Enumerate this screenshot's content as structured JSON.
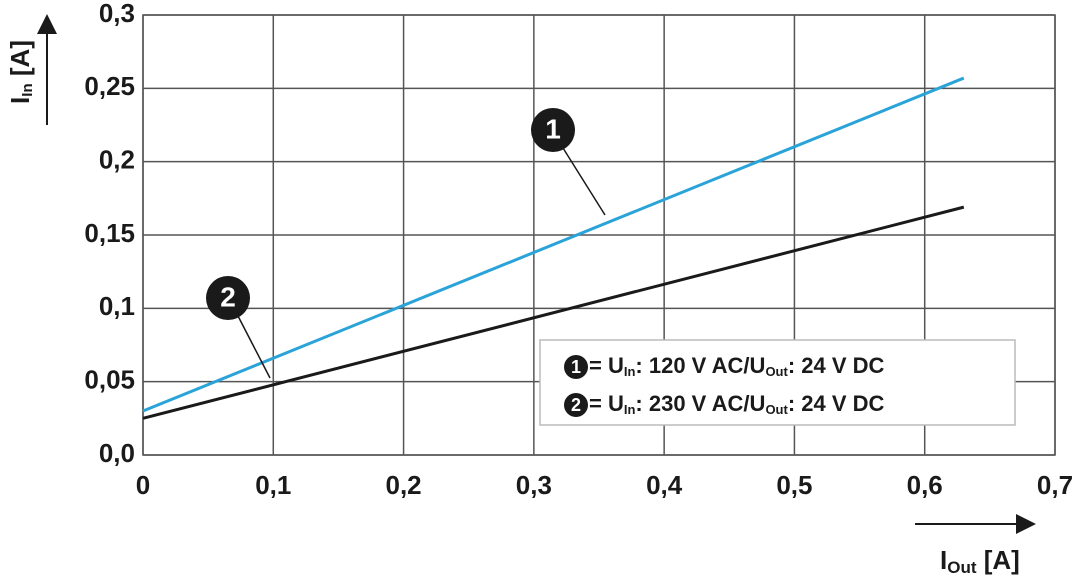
{
  "chart_data": {
    "type": "line",
    "y_label_parts": [
      "I",
      "In",
      " [A]"
    ],
    "x_label_parts": [
      "I",
      "Out",
      " [A]"
    ],
    "xlim": [
      0,
      0.7
    ],
    "ylim": [
      0,
      0.3
    ],
    "xticks": [
      {
        "value": 0,
        "label": "0"
      },
      {
        "value": 0.1,
        "label": "0,1"
      },
      {
        "value": 0.2,
        "label": "0,2"
      },
      {
        "value": 0.3,
        "label": "0,3"
      },
      {
        "value": 0.4,
        "label": "0,4"
      },
      {
        "value": 0.5,
        "label": "0,5"
      },
      {
        "value": 0.6,
        "label": "0,6"
      },
      {
        "value": 0.7,
        "label": "0,7"
      }
    ],
    "yticks": [
      {
        "value": 0,
        "label": "0,0"
      },
      {
        "value": 0.05,
        "label": "0,05"
      },
      {
        "value": 0.1,
        "label": "0,1"
      },
      {
        "value": 0.15,
        "label": "0,15"
      },
      {
        "value": 0.2,
        "label": "0,2"
      },
      {
        "value": 0.25,
        "label": "0,25"
      },
      {
        "value": 0.3,
        "label": "0,3"
      }
    ],
    "grid": true,
    "x": [
      0,
      0.63
    ],
    "series": [
      {
        "marker": "1",
        "name_parts": [
          "= U",
          "In",
          ": 120 V AC/U",
          "Out",
          ": 24 V DC"
        ],
        "color": "#2aa3d8",
        "values": [
          0.03,
          0.257
        ]
      },
      {
        "marker": "2",
        "name_parts": [
          "= U",
          "In",
          ": 230 V AC/U",
          "Out",
          ": 24 V DC"
        ],
        "color": "#1a1a1a",
        "values": [
          0.025,
          0.169
        ]
      }
    ]
  }
}
